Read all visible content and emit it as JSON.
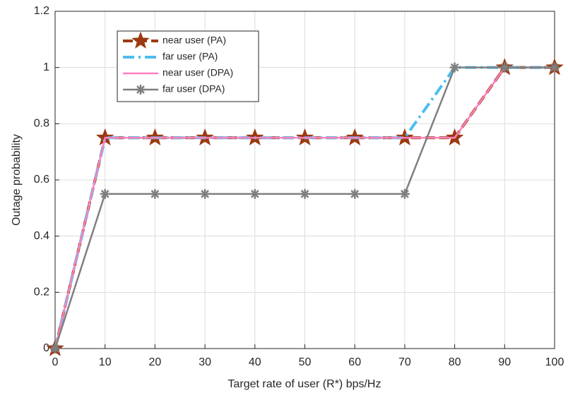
{
  "chart_data": {
    "type": "line",
    "x_label": "Target rate of user (R*) bps/Hz",
    "y_label": "Outage probability",
    "x": [
      0,
      10,
      20,
      30,
      40,
      50,
      60,
      70,
      80,
      90,
      100
    ],
    "series": [
      {
        "name": "near user (PA)",
        "color": "#9b3a12",
        "dash": "14,6",
        "width": 4,
        "marker": "star",
        "values": [
          0,
          0.75,
          0.75,
          0.75,
          0.75,
          0.75,
          0.75,
          0.75,
          0.75,
          1,
          1
        ]
      },
      {
        "name": "far user (PA)",
        "color": "#4dbeee",
        "dash": "16,6,3,6",
        "width": 4,
        "marker": "none",
        "values": [
          0,
          0.75,
          0.75,
          0.75,
          0.75,
          0.75,
          0.75,
          0.75,
          1,
          1,
          1
        ]
      },
      {
        "name": "near user (DPA)",
        "color": "#ff80c0",
        "dash": "none",
        "width": 2.5,
        "marker": "none",
        "values": [
          0,
          0.75,
          0.75,
          0.75,
          0.75,
          0.75,
          0.75,
          0.75,
          0.75,
          1,
          1
        ]
      },
      {
        "name": "far user (DPA)",
        "color": "#7f7f7f",
        "dash": "none",
        "width": 2.5,
        "marker": "asterisk",
        "values": [
          0,
          0.55,
          0.55,
          0.55,
          0.55,
          0.55,
          0.55,
          0.55,
          1,
          1,
          1
        ]
      }
    ],
    "xlim": [
      0,
      100
    ],
    "xticks": [
      0,
      10,
      20,
      30,
      40,
      50,
      60,
      70,
      80,
      90,
      100
    ],
    "ylim": [
      0,
      1.2
    ],
    "yticks": [
      0,
      0.2,
      0.4,
      0.6,
      0.8,
      1,
      1.2
    ],
    "grid": true,
    "legend": "upper-left"
  }
}
